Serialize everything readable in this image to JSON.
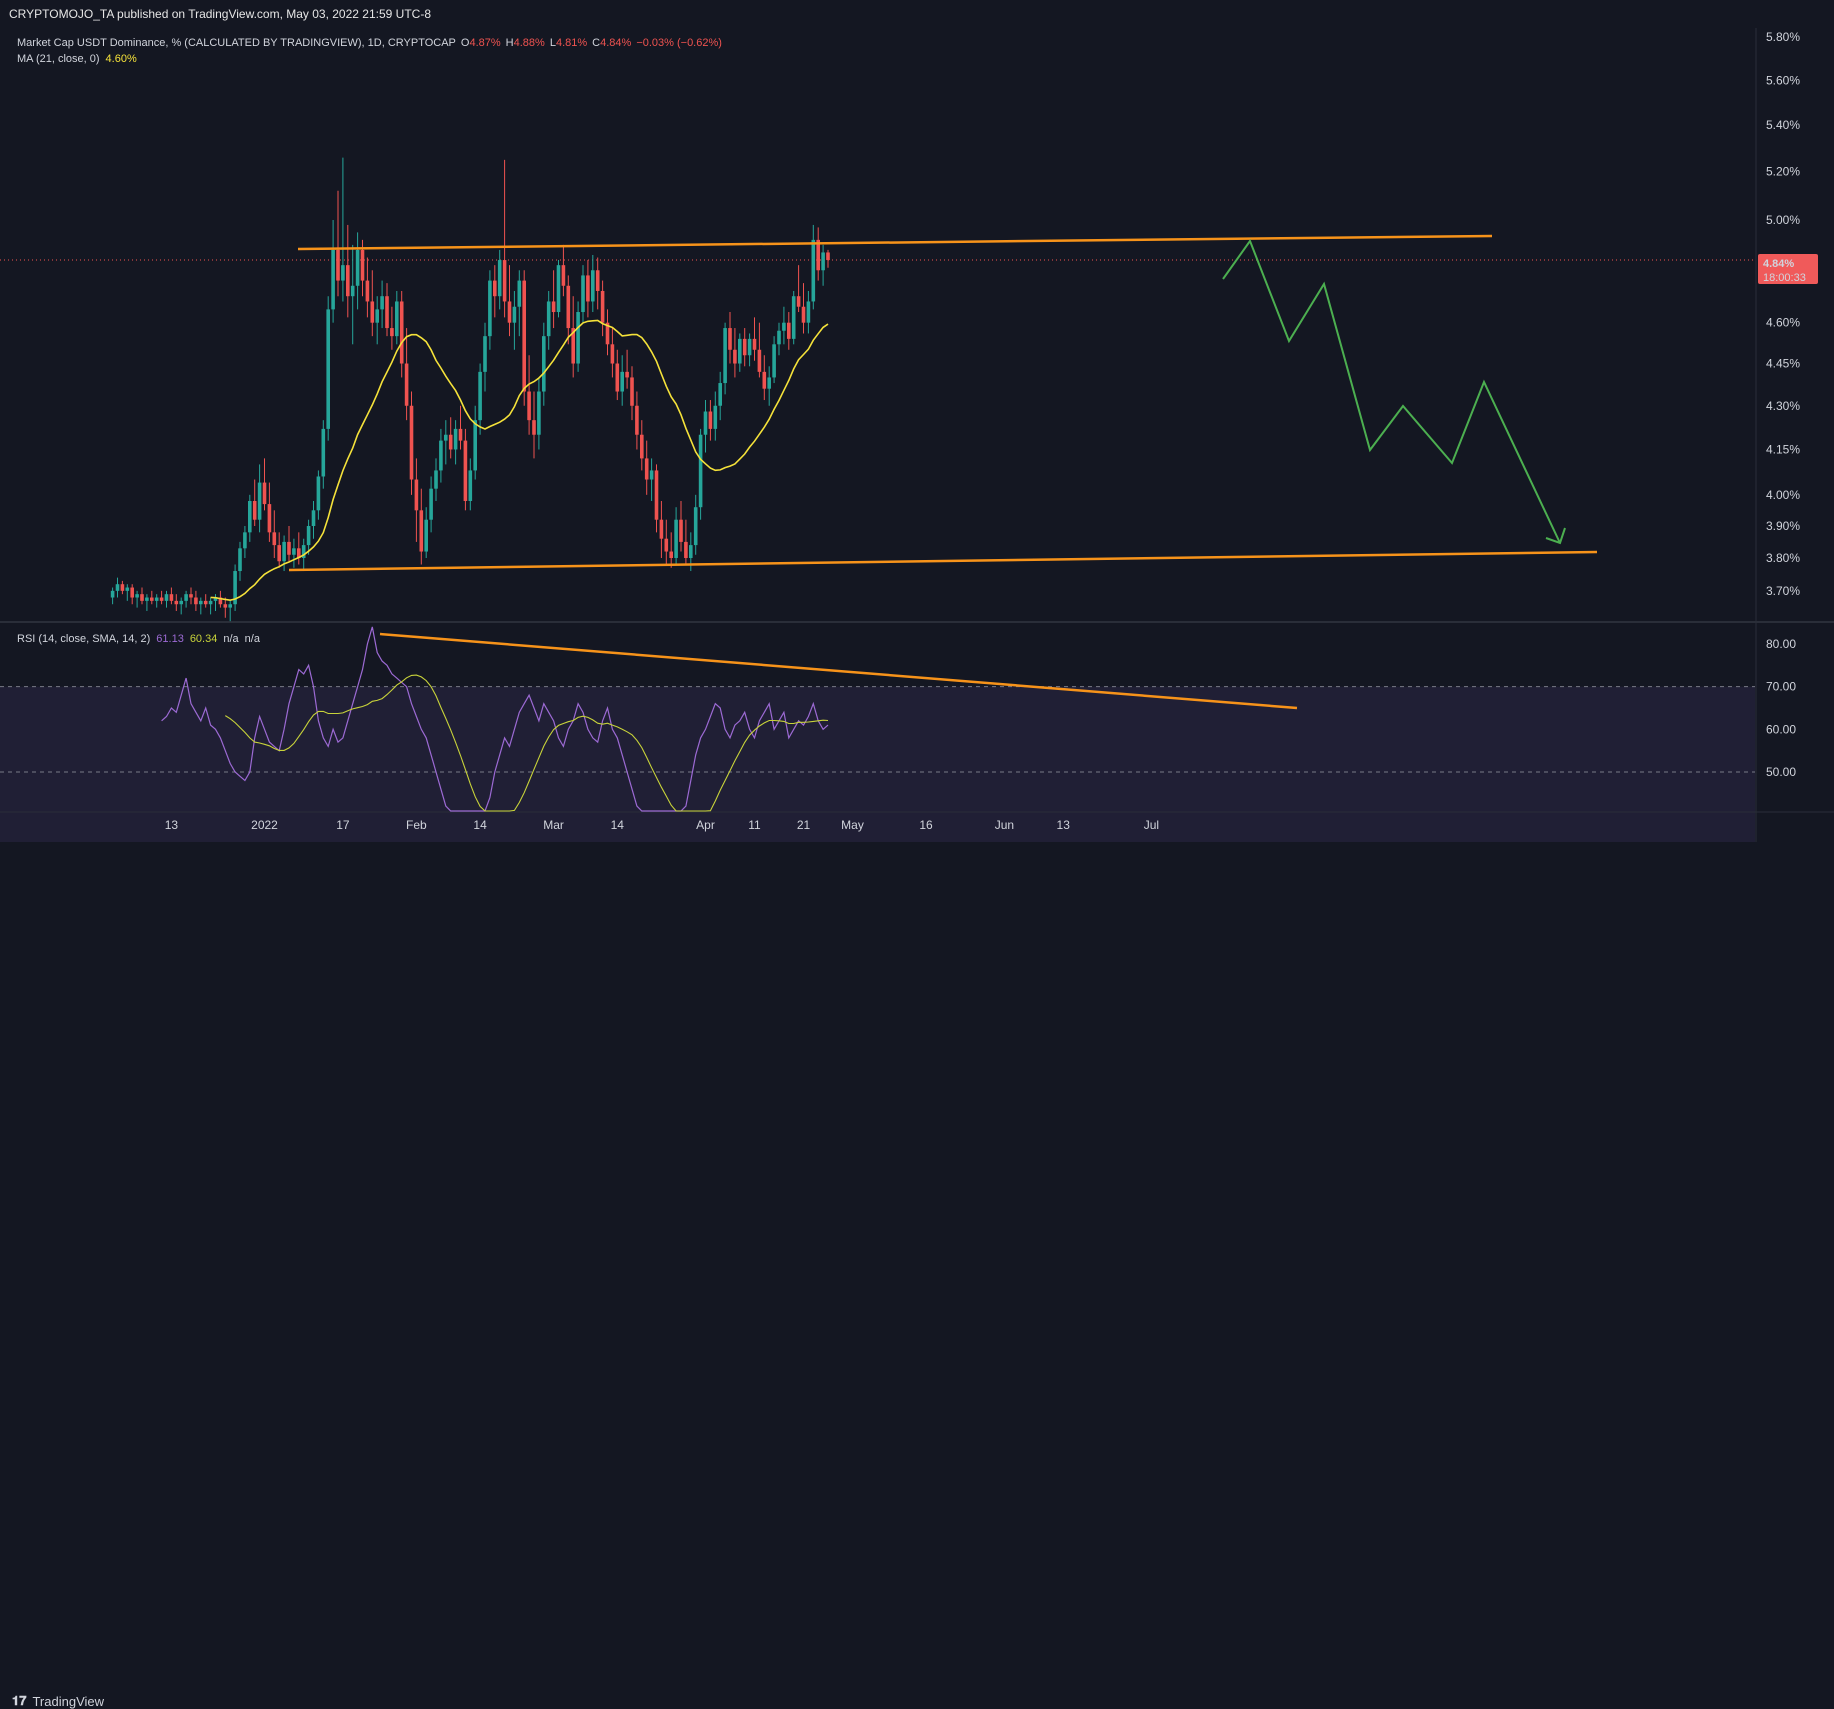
{
  "header": {
    "published": "CRYPTOMOJO_TA published on TradingView.com, May 03, 2022 21:59 UTC-8"
  },
  "footer": {
    "brand": "TradingView",
    "logo_icon": "tradingview-logo-icon"
  },
  "legend": {
    "symbol": "Market Cap USDT Dominance, % (CALCULATED BY TRADINGVIEW), 1D, CRYPTOCAP",
    "o_label": "O",
    "o_value": "4.87%",
    "h_label": "H",
    "h_value": "4.88%",
    "l_label": "L",
    "l_value": "4.81%",
    "c_label": "C",
    "c_value": "4.84%",
    "change": "−0.03% (−0.62%)",
    "ma_label": "MA (21, close, 0)",
    "ma_value": "4.60%",
    "rsi_label": "RSI (14, close, SMA, 14, 2)",
    "rsi_value": "61.13",
    "rsi_sma_value": "60.34",
    "rsi_na1": "n/a",
    "rsi_na2": "n/a"
  },
  "price_badge": {
    "value": "4.84%",
    "countdown": "18:00:33"
  },
  "colors": {
    "bg": "#141722",
    "up": "#26a69a",
    "down": "#ef5350",
    "ma": "#f5e23a",
    "rsi": "#9c6ad4",
    "rsi_sma": "#c8d33a",
    "trend": "#f7931a",
    "projection": "#4caf50",
    "badge": "#f05a5a"
  },
  "chart_data": {
    "type": "candlestick",
    "title": "",
    "price_axis": {
      "scale": "log",
      "ticks": [
        "5.80%",
        "5.60%",
        "5.40%",
        "5.20%",
        "5.00%",
        "4.80%",
        "4.60%",
        "4.45%",
        "4.30%",
        "4.15%",
        "4.00%",
        "3.90%",
        "3.80%",
        "3.70%"
      ]
    },
    "time_axis": {
      "ticks": [
        "13",
        "2022",
        "17",
        "Feb",
        "14",
        "Mar",
        "14",
        "Apr",
        "11",
        "21",
        "May",
        "16",
        "Jun",
        "13",
        "Jul"
      ]
    },
    "rsi_axis": {
      "ticks": [
        "80.00",
        "70.00",
        "60.00",
        "50.00"
      ],
      "bands": [
        30,
        70
      ],
      "midline": 50
    },
    "start_date": "2021-12-01",
    "candles": [
      [
        3.68,
        3.71,
        3.66,
        3.7
      ],
      [
        3.7,
        3.74,
        3.68,
        3.72
      ],
      [
        3.72,
        3.73,
        3.69,
        3.7
      ],
      [
        3.7,
        3.72,
        3.67,
        3.71
      ],
      [
        3.71,
        3.72,
        3.66,
        3.68
      ],
      [
        3.68,
        3.7,
        3.65,
        3.69
      ],
      [
        3.69,
        3.71,
        3.66,
        3.67
      ],
      [
        3.67,
        3.69,
        3.64,
        3.68
      ],
      [
        3.68,
        3.7,
        3.66,
        3.67
      ],
      [
        3.67,
        3.69,
        3.65,
        3.68
      ],
      [
        3.68,
        3.7,
        3.66,
        3.67
      ],
      [
        3.67,
        3.7,
        3.65,
        3.69
      ],
      [
        3.69,
        3.71,
        3.66,
        3.67
      ],
      [
        3.67,
        3.69,
        3.64,
        3.66
      ],
      [
        3.66,
        3.68,
        3.63,
        3.67
      ],
      [
        3.67,
        3.7,
        3.65,
        3.69
      ],
      [
        3.69,
        3.71,
        3.66,
        3.68
      ],
      [
        3.68,
        3.7,
        3.64,
        3.66
      ],
      [
        3.66,
        3.68,
        3.63,
        3.67
      ],
      [
        3.67,
        3.69,
        3.65,
        3.66
      ],
      [
        3.66,
        3.68,
        3.63,
        3.67
      ],
      [
        3.67,
        3.69,
        3.64,
        3.68
      ],
      [
        3.68,
        3.7,
        3.65,
        3.66
      ],
      [
        3.66,
        3.68,
        3.62,
        3.65
      ],
      [
        3.65,
        3.67,
        3.61,
        3.66
      ],
      [
        3.66,
        3.78,
        3.64,
        3.76
      ],
      [
        3.76,
        3.85,
        3.73,
        3.83
      ],
      [
        3.83,
        3.9,
        3.8,
        3.88
      ],
      [
        3.88,
        4.0,
        3.85,
        3.98
      ],
      [
        3.98,
        4.05,
        3.9,
        3.92
      ],
      [
        3.92,
        4.1,
        3.88,
        4.04
      ],
      [
        4.04,
        4.12,
        3.95,
        3.97
      ],
      [
        3.97,
        4.04,
        3.85,
        3.88
      ],
      [
        3.88,
        3.95,
        3.8,
        3.84
      ],
      [
        3.84,
        3.88,
        3.77,
        3.79
      ],
      [
        3.79,
        3.87,
        3.76,
        3.85
      ],
      [
        3.85,
        3.9,
        3.79,
        3.81
      ],
      [
        3.81,
        3.86,
        3.77,
        3.83
      ],
      [
        3.83,
        3.88,
        3.78,
        3.8
      ],
      [
        3.8,
        3.86,
        3.76,
        3.84
      ],
      [
        3.84,
        3.92,
        3.81,
        3.9
      ],
      [
        3.9,
        3.98,
        3.86,
        3.95
      ],
      [
        3.95,
        4.08,
        3.92,
        4.06
      ],
      [
        4.06,
        4.25,
        4.02,
        4.22
      ],
      [
        4.22,
        4.7,
        4.18,
        4.65
      ],
      [
        4.65,
        5.0,
        4.6,
        4.88
      ],
      [
        4.88,
        5.12,
        4.7,
        4.76
      ],
      [
        4.76,
        5.26,
        4.68,
        4.82
      ],
      [
        4.82,
        4.98,
        4.62,
        4.7
      ],
      [
        4.7,
        4.9,
        4.52,
        4.74
      ],
      [
        4.74,
        4.95,
        4.65,
        4.88
      ],
      [
        4.88,
        4.92,
        4.7,
        4.76
      ],
      [
        4.76,
        4.85,
        4.62,
        4.68
      ],
      [
        4.68,
        4.8,
        4.55,
        4.6
      ],
      [
        4.6,
        4.7,
        4.52,
        4.65
      ],
      [
        4.65,
        4.76,
        4.58,
        4.7
      ],
      [
        4.7,
        4.75,
        4.55,
        4.58
      ],
      [
        4.58,
        4.66,
        4.5,
        4.55
      ],
      [
        4.55,
        4.72,
        4.52,
        4.68
      ],
      [
        4.68,
        4.72,
        4.4,
        4.45
      ],
      [
        4.45,
        4.58,
        4.25,
        4.3
      ],
      [
        4.3,
        4.35,
        4.0,
        4.05
      ],
      [
        4.05,
        4.12,
        3.85,
        3.95
      ],
      [
        3.95,
        4.02,
        3.78,
        3.82
      ],
      [
        3.82,
        3.96,
        3.8,
        3.92
      ],
      [
        3.92,
        4.06,
        3.88,
        4.02
      ],
      [
        4.02,
        4.12,
        3.98,
        4.08
      ],
      [
        4.08,
        4.22,
        4.04,
        4.18
      ],
      [
        4.18,
        4.25,
        4.1,
        4.2
      ],
      [
        4.2,
        4.26,
        4.12,
        4.15
      ],
      [
        4.15,
        4.25,
        4.1,
        4.22
      ],
      [
        4.22,
        4.3,
        4.15,
        4.18
      ],
      [
        4.18,
        4.22,
        3.95,
        3.98
      ],
      [
        3.98,
        4.12,
        3.95,
        4.08
      ],
      [
        4.08,
        4.3,
        4.05,
        4.25
      ],
      [
        4.25,
        4.45,
        4.2,
        4.42
      ],
      [
        4.42,
        4.6,
        4.35,
        4.55
      ],
      [
        4.55,
        4.8,
        4.5,
        4.76
      ],
      [
        4.76,
        4.82,
        4.62,
        4.7
      ],
      [
        4.7,
        4.88,
        4.65,
        4.84
      ],
      [
        4.84,
        5.25,
        4.62,
        4.68
      ],
      [
        4.68,
        4.82,
        4.55,
        4.6
      ],
      [
        4.6,
        4.72,
        4.5,
        4.66
      ],
      [
        4.66,
        4.8,
        4.55,
        4.76
      ],
      [
        4.76,
        4.8,
        4.3,
        4.35
      ],
      [
        4.35,
        4.48,
        4.2,
        4.25
      ],
      [
        4.25,
        4.35,
        4.12,
        4.2
      ],
      [
        4.2,
        4.4,
        4.15,
        4.35
      ],
      [
        4.35,
        4.6,
        4.3,
        4.55
      ],
      [
        4.55,
        4.72,
        4.5,
        4.68
      ],
      [
        4.68,
        4.8,
        4.58,
        4.64
      ],
      [
        4.64,
        4.84,
        4.62,
        4.82
      ],
      [
        4.82,
        4.9,
        4.7,
        4.74
      ],
      [
        4.74,
        4.78,
        4.52,
        4.58
      ],
      [
        4.58,
        4.7,
        4.4,
        4.45
      ],
      [
        4.45,
        4.68,
        4.42,
        4.64
      ],
      [
        4.64,
        4.82,
        4.6,
        4.78
      ],
      [
        4.78,
        4.84,
        4.62,
        4.68
      ],
      [
        4.68,
        4.86,
        4.64,
        4.8
      ],
      [
        4.8,
        4.85,
        4.65,
        4.72
      ],
      [
        4.72,
        4.76,
        4.55,
        4.6
      ],
      [
        4.6,
        4.65,
        4.48,
        4.52
      ],
      [
        4.52,
        4.58,
        4.4,
        4.45
      ],
      [
        4.45,
        4.5,
        4.32,
        4.35
      ],
      [
        4.35,
        4.48,
        4.3,
        4.42
      ],
      [
        4.42,
        4.5,
        4.36,
        4.4
      ],
      [
        4.4,
        4.44,
        4.25,
        4.3
      ],
      [
        4.3,
        4.35,
        4.15,
        4.2
      ],
      [
        4.2,
        4.25,
        4.08,
        4.12
      ],
      [
        4.12,
        4.18,
        4.0,
        4.05
      ],
      [
        4.05,
        4.12,
        3.98,
        4.08
      ],
      [
        4.08,
        4.1,
        3.88,
        3.92
      ],
      [
        3.92,
        3.98,
        3.8,
        3.86
      ],
      [
        3.86,
        3.92,
        3.78,
        3.82
      ],
      [
        3.82,
        3.88,
        3.77,
        3.8
      ],
      [
        3.8,
        3.96,
        3.78,
        3.92
      ],
      [
        3.92,
        3.98,
        3.82,
        3.85
      ],
      [
        3.85,
        3.92,
        3.78,
        3.8
      ],
      [
        3.8,
        3.88,
        3.76,
        3.84
      ],
      [
        3.84,
        4.0,
        3.81,
        3.96
      ],
      [
        3.96,
        4.22,
        3.92,
        4.2
      ],
      [
        4.2,
        4.32,
        4.14,
        4.28
      ],
      [
        4.28,
        4.32,
        4.18,
        4.22
      ],
      [
        4.22,
        4.35,
        4.18,
        4.3
      ],
      [
        4.3,
        4.42,
        4.25,
        4.38
      ],
      [
        4.38,
        4.6,
        4.34,
        4.58
      ],
      [
        4.58,
        4.64,
        4.45,
        4.5
      ],
      [
        4.5,
        4.58,
        4.4,
        4.45
      ],
      [
        4.45,
        4.56,
        4.42,
        4.54
      ],
      [
        4.54,
        4.58,
        4.44,
        4.48
      ],
      [
        4.48,
        4.56,
        4.44,
        4.54
      ],
      [
        4.54,
        4.62,
        4.46,
        4.5
      ],
      [
        4.5,
        4.6,
        4.4,
        4.42
      ],
      [
        4.42,
        4.48,
        4.32,
        4.36
      ],
      [
        4.36,
        4.44,
        4.3,
        4.4
      ],
      [
        4.4,
        4.55,
        4.38,
        4.52
      ],
      [
        4.52,
        4.6,
        4.48,
        4.57
      ],
      [
        4.57,
        4.66,
        4.52,
        4.6
      ],
      [
        4.6,
        4.64,
        4.5,
        4.54
      ],
      [
        4.54,
        4.72,
        4.52,
        4.7
      ],
      [
        4.7,
        4.82,
        4.64,
        4.66
      ],
      [
        4.66,
        4.75,
        4.56,
        4.6
      ],
      [
        4.6,
        4.72,
        4.56,
        4.68
      ],
      [
        4.68,
        4.98,
        4.65,
        4.92
      ],
      [
        4.92,
        4.97,
        4.76,
        4.8
      ],
      [
        4.8,
        4.9,
        4.74,
        4.87
      ],
      [
        4.87,
        4.88,
        4.81,
        4.84
      ]
    ],
    "ma21": {
      "label": "MA (21, close, 0)",
      "color": "#f5e23a"
    },
    "rsi": {
      "label": "RSI (14, close, SMA, 14, 2)",
      "values": [
        62,
        63,
        65,
        64,
        68,
        72,
        66,
        64,
        62,
        65,
        61,
        60,
        58,
        55,
        52,
        50,
        49,
        48,
        50,
        58,
        63,
        60,
        57,
        56,
        55,
        60,
        66,
        70,
        74,
        73,
        75,
        70,
        62,
        58,
        56,
        60,
        57,
        58,
        62,
        66,
        70,
        74,
        80,
        84,
        78,
        76,
        75,
        73,
        72,
        71,
        70,
        66,
        63,
        60,
        58,
        54,
        50,
        46,
        42,
        38,
        34,
        30,
        26,
        24,
        28,
        34,
        38,
        44,
        50,
        54,
        58,
        56,
        60,
        64,
        66,
        68,
        65,
        62,
        66,
        64,
        62,
        58,
        56,
        60,
        62,
        66,
        64,
        60,
        58,
        57,
        62,
        65,
        60,
        58,
        54,
        50,
        46,
        42,
        38,
        34,
        30,
        28,
        26,
        28,
        32,
        34,
        36,
        42,
        48,
        54,
        58,
        60,
        63,
        66,
        65,
        60,
        58,
        61,
        62,
        64,
        60,
        58,
        62,
        64,
        66,
        60,
        62,
        64,
        58,
        60,
        62,
        61,
        63,
        66,
        62,
        60,
        61
      ],
      "sma_color": "#c8d33a"
    }
  }
}
